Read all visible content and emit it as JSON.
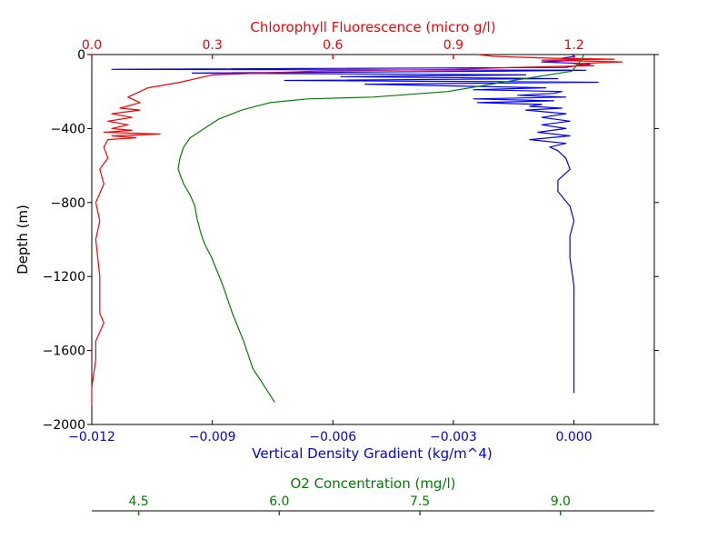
{
  "chart_data": {
    "type": "line",
    "title": "",
    "colors": {
      "density": "#0000ff",
      "chlorophyll": "#ff0000",
      "o2": "#008000"
    },
    "axes": {
      "depth": {
        "label": "Depth (m)",
        "range": [
          -2000,
          0
        ],
        "ticks": [
          {
            "value": 0,
            "label": "0"
          },
          {
            "value": -400,
            "label": "−400"
          },
          {
            "value": -800,
            "label": "−800"
          },
          {
            "value": -1200,
            "label": "−1200"
          },
          {
            "value": -1600,
            "label": "−1600"
          },
          {
            "value": -2000,
            "label": "−2000"
          }
        ]
      },
      "density": {
        "label": "Vertical Density Gradient (kg/m^4)",
        "range": [
          -0.012,
          0.002
        ],
        "ticks": [
          {
            "value": -0.012,
            "label": "−0.012"
          },
          {
            "value": -0.009,
            "label": "−0.009"
          },
          {
            "value": -0.006,
            "label": "−0.006"
          },
          {
            "value": -0.003,
            "label": "−0.003"
          },
          {
            "value": 0.0,
            "label": "0.000"
          }
        ]
      },
      "chlorophyll": {
        "label": "Chlorophyll Fluorescence (micro g/l)",
        "range": [
          0,
          1.4
        ],
        "ticks": [
          {
            "value": 0.0,
            "label": "0.0"
          },
          {
            "value": 0.3,
            "label": "0.3"
          },
          {
            "value": 0.6,
            "label": "0.6"
          },
          {
            "value": 0.9,
            "label": "0.9"
          },
          {
            "value": 1.2,
            "label": "1.2"
          }
        ]
      },
      "o2": {
        "label": "O2 Concentration (mg/l)",
        "range": [
          4.0,
          10.0
        ],
        "ticks": [
          {
            "value": 4.5,
            "label": "4.5"
          },
          {
            "value": 6.0,
            "label": "6.0"
          },
          {
            "value": 7.5,
            "label": "7.5"
          },
          {
            "value": 9.0,
            "label": "9.0"
          }
        ]
      }
    },
    "series": [
      {
        "key": "density",
        "axis": "density",
        "points": [
          [
            -5e-05,
            0
          ],
          [
            2e-05,
            -10
          ],
          [
            -0.0003,
            -20
          ],
          [
            0.0001,
            -30
          ],
          [
            -0.0008,
            -40
          ],
          [
            0.0004,
            -50
          ],
          [
            0.0001,
            -60
          ],
          [
            -0.0002,
            -70
          ],
          [
            -0.0115,
            -80
          ],
          [
            0.0003,
            -85
          ],
          [
            -0.0018,
            -90
          ],
          [
            -0.0095,
            -100
          ],
          [
            -0.0012,
            -110
          ],
          [
            -0.0058,
            -120
          ],
          [
            -0.0004,
            -130
          ],
          [
            -0.0072,
            -140
          ],
          [
            0.0006,
            -150
          ],
          [
            -0.0052,
            -160
          ],
          [
            -0.0007,
            -180
          ],
          [
            -0.0025,
            -190
          ],
          [
            -0.0003,
            -200
          ],
          [
            -0.0005,
            -210
          ],
          [
            -0.0014,
            -220
          ],
          [
            -0.0002,
            -230
          ],
          [
            -0.0025,
            -240
          ],
          [
            -0.0005,
            -250
          ],
          [
            -0.0024,
            -260
          ],
          [
            -0.0008,
            -270
          ],
          [
            -0.0011,
            -280
          ],
          [
            -0.0003,
            -290
          ],
          [
            -0.0012,
            -300
          ],
          [
            -0.0002,
            -320
          ],
          [
            -0.0008,
            -340
          ],
          [
            -0.0001,
            -360
          ],
          [
            -0.0008,
            -380
          ],
          [
            -0.0002,
            -400
          ],
          [
            -0.0009,
            -420
          ],
          [
            -0.0001,
            -440
          ],
          [
            -0.0011,
            -460
          ],
          [
            -0.0002,
            -480
          ],
          [
            -0.0006,
            -500
          ],
          [
            -0.0004,
            -520
          ],
          [
            -0.0002,
            -560
          ],
          [
            -0.0001,
            -620
          ],
          [
            -0.0004,
            -680
          ],
          [
            -0.0004,
            -740
          ],
          [
            -0.0001,
            -820
          ],
          [
            0.0,
            -900
          ],
          [
            -0.0001,
            -980
          ],
          [
            -0.0001,
            -1100
          ],
          [
            0.0,
            -1250
          ],
          [
            0.0,
            -1450
          ],
          [
            0.0,
            -1600
          ],
          [
            0.0,
            -1720
          ],
          [
            0.0,
            -1830
          ]
        ]
      },
      {
        "key": "chlorophyll",
        "axis": "chlorophyll",
        "points": [
          [
            0.96,
            0
          ],
          [
            1.0,
            -10
          ],
          [
            1.15,
            -20
          ],
          [
            1.3,
            -25
          ],
          [
            1.12,
            -30
          ],
          [
            1.32,
            -40
          ],
          [
            1.2,
            -50
          ],
          [
            1.25,
            -60
          ],
          [
            1.05,
            -70
          ],
          [
            0.9,
            -80
          ],
          [
            0.55,
            -90
          ],
          [
            0.3,
            -110
          ],
          [
            0.22,
            -150
          ],
          [
            0.14,
            -180
          ],
          [
            0.12,
            -200
          ],
          [
            0.09,
            -230
          ],
          [
            0.12,
            -260
          ],
          [
            0.07,
            -290
          ],
          [
            0.12,
            -300
          ],
          [
            0.05,
            -320
          ],
          [
            0.1,
            -340
          ],
          [
            0.04,
            -360
          ],
          [
            0.09,
            -380
          ],
          [
            0.05,
            -400
          ],
          [
            0.1,
            -410
          ],
          [
            0.03,
            -420
          ],
          [
            0.17,
            -430
          ],
          [
            0.05,
            -440
          ],
          [
            0.11,
            -450
          ],
          [
            0.04,
            -460
          ],
          [
            0.03,
            -500
          ],
          [
            0.04,
            -560
          ],
          [
            0.02,
            -620
          ],
          [
            0.03,
            -700
          ],
          [
            0.01,
            -800
          ],
          [
            0.02,
            -900
          ],
          [
            0.01,
            -1000
          ],
          [
            0.02,
            -1200
          ],
          [
            0.02,
            -1400
          ],
          [
            0.03,
            -1450
          ],
          [
            0.01,
            -1550
          ],
          [
            0.01,
            -1650
          ],
          [
            0.0,
            -1800
          ],
          [
            0.0,
            -1900
          ]
        ]
      },
      {
        "key": "o2",
        "axis": "o2",
        "points": [
          [
            9.25,
            0
          ],
          [
            9.22,
            -30
          ],
          [
            9.17,
            -60
          ],
          [
            9.12,
            -90
          ],
          [
            8.5,
            -140
          ],
          [
            7.8,
            -200
          ],
          [
            7.0,
            -230
          ],
          [
            6.3,
            -240
          ],
          [
            5.9,
            -260
          ],
          [
            5.6,
            -300
          ],
          [
            5.35,
            -350
          ],
          [
            5.2,
            -400
          ],
          [
            5.05,
            -450
          ],
          [
            4.98,
            -500
          ],
          [
            4.94,
            -560
          ],
          [
            4.92,
            -620
          ],
          [
            4.98,
            -700
          ],
          [
            5.05,
            -760
          ],
          [
            5.1,
            -820
          ],
          [
            5.12,
            -880
          ],
          [
            5.16,
            -960
          ],
          [
            5.2,
            -1020
          ],
          [
            5.28,
            -1100
          ],
          [
            5.4,
            -1250
          ],
          [
            5.5,
            -1400
          ],
          [
            5.62,
            -1550
          ],
          [
            5.72,
            -1700
          ],
          [
            5.85,
            -1800
          ],
          [
            5.95,
            -1880
          ]
        ]
      }
    ]
  }
}
